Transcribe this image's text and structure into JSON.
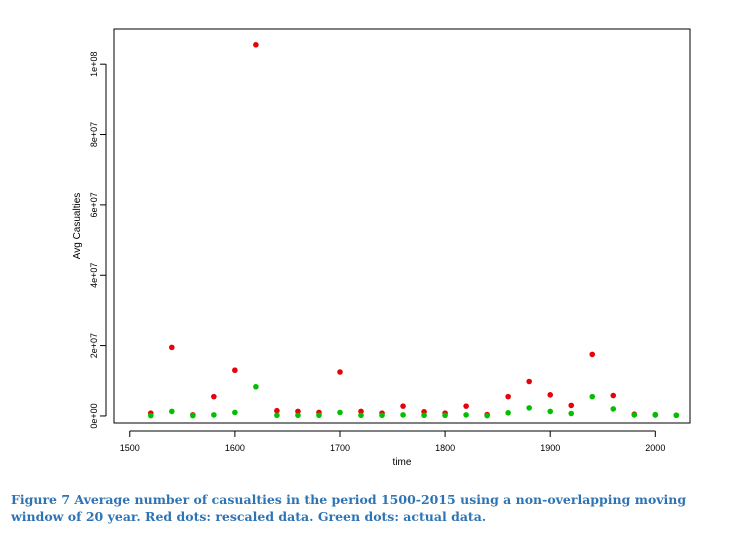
{
  "chart_data": {
    "type": "scatter",
    "title": "",
    "xlabel": "time",
    "ylabel": "Avg Casualties",
    "xlim": [
      1485,
      2033
    ],
    "ylim": [
      -2000000,
      110000000
    ],
    "x_ticks": [
      1500,
      1600,
      1700,
      1800,
      1900,
      2000
    ],
    "x_tick_labels": [
      "1500",
      "1600",
      "1700",
      "1800",
      "1900",
      "2000"
    ],
    "y_ticks": [
      0,
      20000000,
      40000000,
      60000000,
      80000000,
      100000000
    ],
    "y_tick_labels": [
      "0e+00",
      "2e+07",
      "4e+07",
      "6e+07",
      "8e+07",
      "1e+08"
    ],
    "grid": false,
    "legend": "none",
    "x": [
      1520,
      1540,
      1560,
      1580,
      1600,
      1620,
      1640,
      1660,
      1680,
      1700,
      1720,
      1740,
      1760,
      1780,
      1800,
      1820,
      1840,
      1860,
      1880,
      1900,
      1920,
      1940,
      1960,
      1980,
      2000,
      2020
    ],
    "series": [
      {
        "color": "#e8000b",
        "values": [
          800000,
          19500000,
          300000,
          5500000,
          13000000,
          105500000,
          1500000,
          1300000,
          1000000,
          12500000,
          1300000,
          800000,
          2800000,
          1200000,
          800000,
          2800000,
          400000,
          5500000,
          9800000,
          6000000,
          3000000,
          17500000,
          5800000,
          500000,
          300000,
          200000
        ]
      },
      {
        "color": "#00c000",
        "values": [
          100000,
          1300000,
          100000,
          300000,
          1000000,
          8300000,
          200000,
          200000,
          200000,
          1000000,
          200000,
          200000,
          300000,
          200000,
          200000,
          300000,
          100000,
          900000,
          2300000,
          1300000,
          700000,
          5500000,
          2000000,
          300000,
          400000,
          200000
        ]
      }
    ]
  },
  "caption": "Figure 7 Average number of casualties in the period 1500-2015 using a non-overlapping moving window of 20 year. Red dots: rescaled data. Green dots: actual data.",
  "caption_color": "#2e74b5"
}
